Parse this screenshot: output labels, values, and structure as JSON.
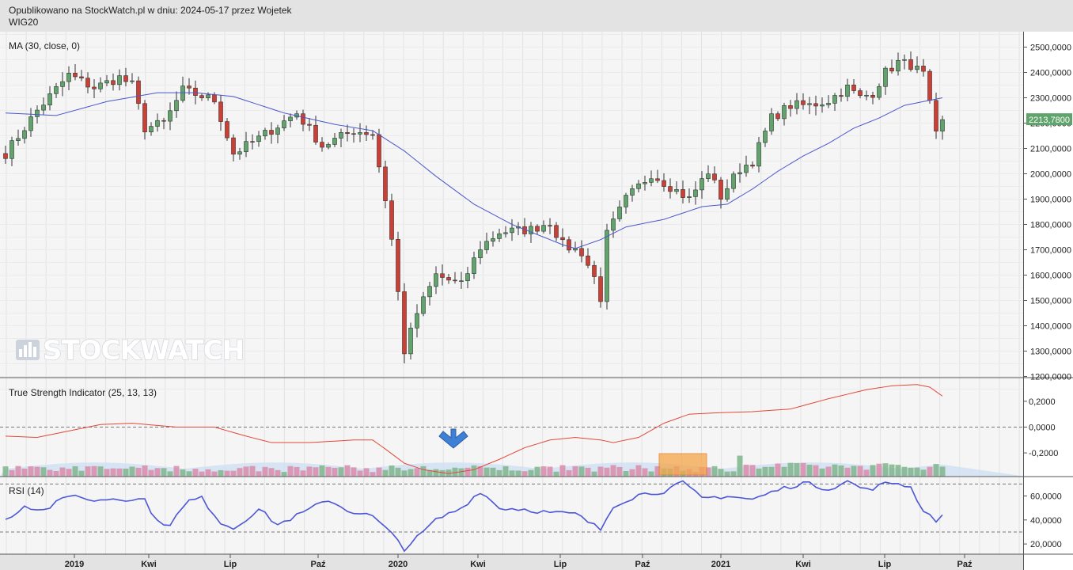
{
  "header": {
    "published": "Opublikowano na StockWatch.pl w dniu: 2024-05-17 przez Wojetek",
    "symbol": "WIG20"
  },
  "watermark": "STOCKWATCH",
  "colors": {
    "up": "#5fa46b",
    "down": "#cf3e32",
    "ma": "#4a56cc",
    "tsi": "#e2493a",
    "rsi": "#4c57d6",
    "last_price_bg": "#5fa46b"
  },
  "chart_data": [
    {
      "type": "candlestick",
      "title": "MA (30, close, 0)",
      "y_ticks": [
        "1200,0000",
        "1300,0000",
        "1400,0000",
        "1500,0000",
        "1600,0000",
        "1700,0000",
        "1800,0000",
        "1900,0000",
        "2000,0000",
        "2100,0000",
        "2200,0000",
        "2300,0000",
        "2400,0000",
        "2500,0000"
      ],
      "y_tick_values": [
        1200,
        1300,
        1400,
        1500,
        1600,
        1700,
        1800,
        1900,
        2000,
        2100,
        2200,
        2300,
        2400,
        2500
      ],
      "ylim": [
        1180,
        2540
      ],
      "last_price_label": "2213,7800",
      "last_price": 2213.78,
      "close_anchors": [
        [
          0,
          2080
        ],
        [
          5,
          2250
        ],
        [
          10,
          2390
        ],
        [
          14,
          2340
        ],
        [
          18,
          2380
        ],
        [
          20,
          2350
        ],
        [
          22,
          2180
        ],
        [
          25,
          2200
        ],
        [
          28,
          2330
        ],
        [
          33,
          2290
        ],
        [
          36,
          2080
        ],
        [
          40,
          2140
        ],
        [
          46,
          2240
        ],
        [
          50,
          2110
        ],
        [
          55,
          2170
        ],
        [
          58,
          2160
        ],
        [
          60,
          1900
        ],
        [
          61,
          1740
        ],
        [
          62,
          1530
        ],
        [
          63,
          1300
        ],
        [
          65,
          1450
        ],
        [
          68,
          1600
        ],
        [
          72,
          1560
        ],
        [
          75,
          1710
        ],
        [
          78,
          1770
        ],
        [
          83,
          1780
        ],
        [
          86,
          1810
        ],
        [
          88,
          1720
        ],
        [
          91,
          1690
        ],
        [
          93,
          1590
        ],
        [
          94,
          1510
        ],
        [
          95,
          1760
        ],
        [
          98,
          1900
        ],
        [
          102,
          2000
        ],
        [
          105,
          1950
        ],
        [
          108,
          1900
        ],
        [
          111,
          2010
        ],
        [
          113,
          1910
        ],
        [
          116,
          2020
        ],
        [
          118,
          2050
        ],
        [
          121,
          2220
        ],
        [
          124,
          2270
        ],
        [
          127,
          2270
        ],
        [
          130,
          2290
        ],
        [
          133,
          2340
        ],
        [
          135,
          2300
        ],
        [
          137,
          2320
        ],
        [
          139,
          2400
        ],
        [
          141,
          2440
        ],
        [
          143,
          2430
        ],
        [
          145,
          2390
        ],
        [
          146,
          2270
        ],
        [
          147,
          2150
        ],
        [
          148,
          2213.78
        ]
      ],
      "ma_anchors": [
        [
          0,
          2240
        ],
        [
          8,
          2230
        ],
        [
          16,
          2285
        ],
        [
          24,
          2320
        ],
        [
          30,
          2320
        ],
        [
          36,
          2305
        ],
        [
          44,
          2240
        ],
        [
          52,
          2195
        ],
        [
          58,
          2170
        ],
        [
          63,
          2090
        ],
        [
          68,
          1990
        ],
        [
          74,
          1880
        ],
        [
          80,
          1800
        ],
        [
          84,
          1760
        ],
        [
          88,
          1720
        ],
        [
          90,
          1705
        ],
        [
          94,
          1740
        ],
        [
          98,
          1790
        ],
        [
          104,
          1820
        ],
        [
          110,
          1870
        ],
        [
          114,
          1880
        ],
        [
          118,
          1940
        ],
        [
          122,
          2010
        ],
        [
          126,
          2070
        ],
        [
          130,
          2120
        ],
        [
          134,
          2180
        ],
        [
          138,
          2220
        ],
        [
          142,
          2270
        ],
        [
          148,
          2300
        ]
      ]
    },
    {
      "type": "line+histogram",
      "title": "True Strength Indicator (25, 13, 13)",
      "y_ticks": [
        "-0,2000",
        "0,0000",
        "0,2000"
      ],
      "y_tick_values": [
        -0.2,
        0,
        0.2
      ],
      "ylim": [
        -0.4,
        0.42
      ],
      "tsi_anchors": [
        [
          0,
          -0.07
        ],
        [
          5,
          -0.08
        ],
        [
          10,
          -0.03
        ],
        [
          15,
          0.02
        ],
        [
          20,
          0.03
        ],
        [
          27,
          0.0
        ],
        [
          33,
          0.0
        ],
        [
          38,
          -0.07
        ],
        [
          42,
          -0.12
        ],
        [
          48,
          -0.12
        ],
        [
          55,
          -0.1
        ],
        [
          58,
          -0.1
        ],
        [
          60,
          -0.17
        ],
        [
          63,
          -0.28
        ],
        [
          66,
          -0.33
        ],
        [
          70,
          -0.36
        ],
        [
          74,
          -0.33
        ],
        [
          78,
          -0.25
        ],
        [
          82,
          -0.16
        ],
        [
          86,
          -0.1
        ],
        [
          90,
          -0.08
        ],
        [
          94,
          -0.1
        ],
        [
          96,
          -0.12
        ],
        [
          100,
          -0.08
        ],
        [
          104,
          0.03
        ],
        [
          108,
          0.1
        ],
        [
          112,
          0.11
        ],
        [
          118,
          0.12
        ],
        [
          124,
          0.14
        ],
        [
          130,
          0.22
        ],
        [
          136,
          0.29
        ],
        [
          140,
          0.32
        ],
        [
          144,
          0.33
        ],
        [
          146,
          0.31
        ],
        [
          148,
          0.24
        ]
      ]
    },
    {
      "type": "line",
      "title": "RSI (14)",
      "y_ticks": [
        "20,0000",
        "40,0000",
        "60,0000"
      ],
      "y_tick_values": [
        20,
        40,
        60
      ],
      "ylim": [
        12,
        77
      ],
      "guides": [
        30,
        70
      ],
      "rsi_anchors": [
        [
          0,
          40
        ],
        [
          3,
          52
        ],
        [
          6,
          48
        ],
        [
          9,
          57
        ],
        [
          11,
          62
        ],
        [
          13,
          56
        ],
        [
          17,
          58
        ],
        [
          22,
          57
        ],
        [
          24,
          38
        ],
        [
          26,
          37
        ],
        [
          29,
          56
        ],
        [
          31,
          58
        ],
        [
          34,
          38
        ],
        [
          36,
          33
        ],
        [
          40,
          49
        ],
        [
          43,
          36
        ],
        [
          47,
          46
        ],
        [
          51,
          57
        ],
        [
          54,
          48
        ],
        [
          58,
          43
        ],
        [
          62,
          23
        ],
        [
          63,
          16
        ],
        [
          65,
          25
        ],
        [
          68,
          40
        ],
        [
          72,
          50
        ],
        [
          75,
          64
        ],
        [
          78,
          50
        ],
        [
          82,
          49
        ],
        [
          86,
          46
        ],
        [
          90,
          45
        ],
        [
          94,
          32
        ],
        [
          96,
          52
        ],
        [
          100,
          61
        ],
        [
          104,
          64
        ],
        [
          107,
          71
        ],
        [
          110,
          58
        ],
        [
          114,
          60
        ],
        [
          118,
          57
        ],
        [
          122,
          65
        ],
        [
          126,
          71
        ],
        [
          130,
          66
        ],
        [
          133,
          72
        ],
        [
          136,
          65
        ],
        [
          139,
          70
        ],
        [
          141,
          71
        ],
        [
          143,
          67
        ],
        [
          145,
          48
        ],
        [
          147,
          40
        ],
        [
          148,
          44
        ]
      ]
    }
  ],
  "x_ticks": [
    {
      "label": "2019",
      "index": 8
    },
    {
      "label": "Kwi",
      "index": 16
    },
    {
      "label": "Lip",
      "index": 25
    },
    {
      "label": "Paź",
      "index": 34
    },
    {
      "label": "2020",
      "index": 43
    },
    {
      "label": "Kwi",
      "index": 52
    },
    {
      "label": "Lip",
      "index": 61
    },
    {
      "label": "Paź",
      "index": 70
    },
    {
      "label": "2021",
      "index": 79
    },
    {
      "label": "Kwi",
      "index": 88
    },
    {
      "label": "Lip",
      "index": 97
    },
    {
      "label": "Paź",
      "index": 106
    }
  ]
}
